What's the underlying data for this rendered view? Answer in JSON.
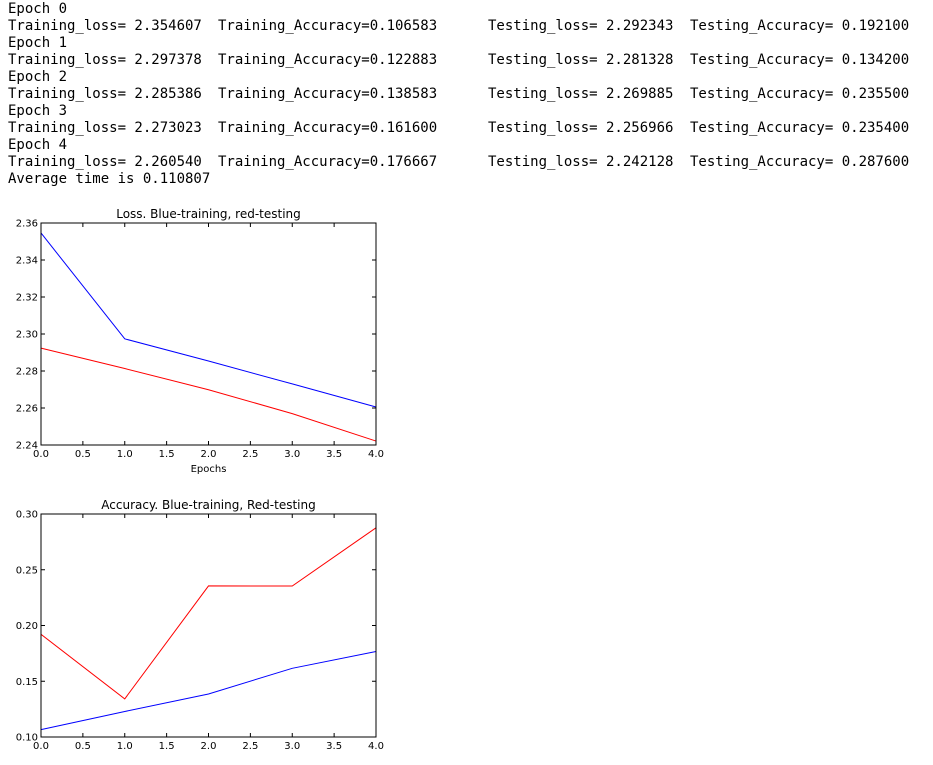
{
  "log": [
    {
      "type": "epoch",
      "text": "Epoch 0"
    },
    {
      "type": "metrics",
      "train_loss": "Training_loss= 2.354607",
      "train_acc": "Training_Accuracy=0.106583",
      "test_loss": "Testing_loss= 2.292343",
      "test_acc": "Testing_Accuracy= 0.192100"
    },
    {
      "type": "epoch",
      "text": "Epoch 1"
    },
    {
      "type": "metrics",
      "train_loss": "Training_loss= 2.297378",
      "train_acc": "Training_Accuracy=0.122883",
      "test_loss": "Testing_loss= 2.281328",
      "test_acc": "Testing_Accuracy= 0.134200"
    },
    {
      "type": "epoch",
      "text": "Epoch 2"
    },
    {
      "type": "metrics",
      "train_loss": "Training_loss= 2.285386",
      "train_acc": "Training_Accuracy=0.138583",
      "test_loss": "Testing_loss= 2.269885",
      "test_acc": "Testing_Accuracy= 0.235500"
    },
    {
      "type": "epoch",
      "text": "Epoch 3"
    },
    {
      "type": "metrics",
      "train_loss": "Training_loss= 2.273023",
      "train_acc": "Training_Accuracy=0.161600",
      "test_loss": "Testing_loss= 2.256966",
      "test_acc": "Testing_Accuracy= 0.235400"
    },
    {
      "type": "epoch",
      "text": "Epoch 4"
    },
    {
      "type": "metrics",
      "train_loss": "Training_loss= 2.260540",
      "train_acc": "Training_Accuracy=0.176667",
      "test_loss": "Testing_loss= 2.242128",
      "test_acc": "Testing_Accuracy= 0.287600"
    },
    {
      "type": "text",
      "text": "Average time is 0.110807"
    }
  ],
  "chart_data": [
    {
      "type": "line",
      "title": "Loss. Blue-training, red-testing",
      "xlabel": "Epochs",
      "ylabel": "",
      "xlim": [
        0,
        4
      ],
      "ylim": [
        2.24,
        2.36
      ],
      "xticks": [
        "0.0",
        "0.5",
        "1.0",
        "1.5",
        "2.0",
        "2.5",
        "3.0",
        "3.5",
        "4.0"
      ],
      "yticks": [
        "2.24",
        "2.26",
        "2.28",
        "2.30",
        "2.32",
        "2.34",
        "2.36"
      ],
      "grid": false,
      "x": [
        0,
        1,
        2,
        3,
        4
      ],
      "series": [
        {
          "color": "#0000ff",
          "values": [
            2.354607,
            2.297378,
            2.285386,
            2.273023,
            2.26054
          ]
        },
        {
          "color": "#ff0000",
          "values": [
            2.292343,
            2.281328,
            2.269885,
            2.256966,
            2.242128
          ]
        }
      ]
    },
    {
      "type": "line",
      "title": "Accuracy. Blue-training, Red-testing",
      "xlabel": "",
      "ylabel": "",
      "xlim": [
        0,
        4
      ],
      "ylim": [
        0.1,
        0.3
      ],
      "xticks": [
        "0.0",
        "0.5",
        "1.0",
        "1.5",
        "2.0",
        "2.5",
        "3.0",
        "3.5",
        "4.0"
      ],
      "yticks": [
        "0.10",
        "0.15",
        "0.20",
        "0.25",
        "0.30"
      ],
      "grid": false,
      "x": [
        0,
        1,
        2,
        3,
        4
      ],
      "series": [
        {
          "color": "#0000ff",
          "values": [
            0.106583,
            0.122883,
            0.138583,
            0.1616,
            0.176667
          ]
        },
        {
          "color": "#ff0000",
          "values": [
            0.1921,
            0.1342,
            0.2355,
            0.2354,
            0.2876
          ]
        }
      ]
    }
  ]
}
